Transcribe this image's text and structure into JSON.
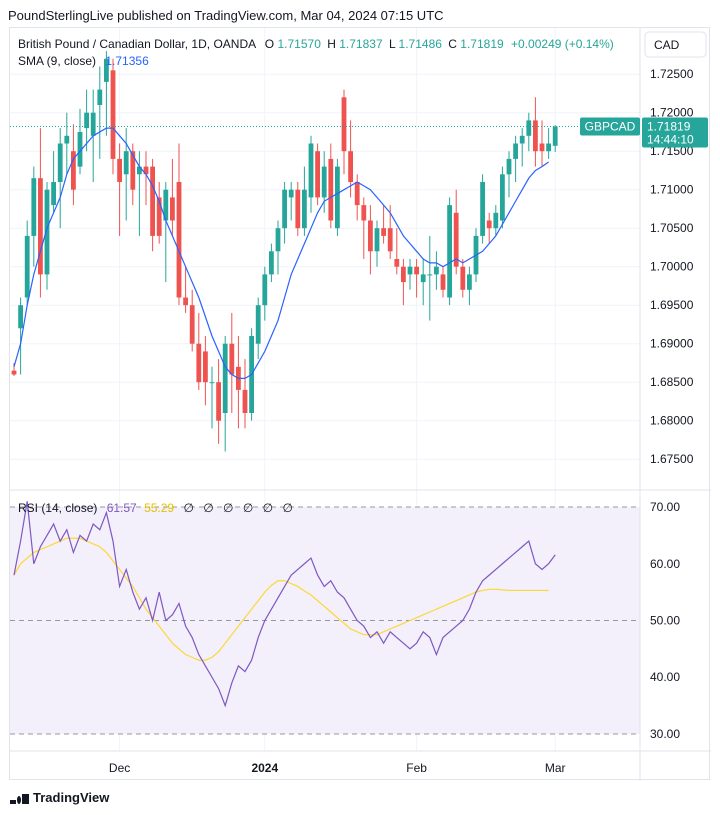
{
  "header": {
    "publisher_line": "PoundSterlingLive published on TradingView.com, Mar 04, 2024 07:15 UTC"
  },
  "currency_button": "CAD",
  "legend": {
    "symbol": "British Pound / Canadian Dollar, 1D, OANDA",
    "open_label": "O",
    "open": "1.71570",
    "high_label": "H",
    "high": "1.71837",
    "low_label": "L",
    "low": "1.71486",
    "close_label": "C",
    "close": "1.71819",
    "change": "+0.00249 (+0.14%)",
    "sma_label": "SMA (9, close)",
    "sma_value": "1.71356",
    "rsi_label": "RSI (14, close)",
    "rsi_value": "61.57",
    "rsi_ma_value": "55.29",
    "na_marks": [
      "∅",
      "∅",
      "∅",
      "∅",
      "∅",
      "∅"
    ]
  },
  "price_tag": {
    "symbol": "GBPCAD",
    "price": "1.71819",
    "countdown": "14:44:10"
  },
  "colors": {
    "up": "#26a69a",
    "down": "#ef5350",
    "sma": "#2962ff",
    "rsi": "#7e57c2",
    "rsi_ma": "#fdd835",
    "rsi_band": "#f3effb",
    "grid": "#f0f3fa",
    "tag": "#26a69a"
  },
  "chart_data": [
    {
      "type": "candlestick",
      "title": "British Pound / Canadian Dollar, 1D, OANDA",
      "price_ticks": [
        "1.72500",
        "1.72000",
        "1.71500",
        "1.71000",
        "1.70500",
        "1.70000",
        "1.69500",
        "1.69000",
        "1.68500",
        "1.68000",
        "1.67500"
      ],
      "time_ticks": [
        {
          "label": "Dec",
          "idx": 16
        },
        {
          "label": "2024",
          "idx": 38
        },
        {
          "label": "Feb",
          "idx": 61
        },
        {
          "label": "Mar",
          "idx": 82
        }
      ],
      "ylim": [
        1.671,
        1.731
      ],
      "candles": [
        {
          "o": 1.6865,
          "h": 1.6875,
          "l": 1.6858,
          "c": 1.686
        },
        {
          "o": 1.692,
          "h": 1.696,
          "l": 1.686,
          "c": 1.695
        },
        {
          "o": 1.696,
          "h": 1.706,
          "l": 1.695,
          "c": 1.704
        },
        {
          "o": 1.704,
          "h": 1.713,
          "l": 1.7,
          "c": 1.7115
        },
        {
          "o": 1.7115,
          "h": 1.718,
          "l": 1.696,
          "c": 1.699
        },
        {
          "o": 1.699,
          "h": 1.711,
          "l": 1.697,
          "c": 1.71
        },
        {
          "o": 1.708,
          "h": 1.715,
          "l": 1.707,
          "c": 1.711
        },
        {
          "o": 1.711,
          "h": 1.718,
          "l": 1.705,
          "c": 1.716
        },
        {
          "o": 1.716,
          "h": 1.72,
          "l": 1.712,
          "c": 1.717
        },
        {
          "o": 1.715,
          "h": 1.7185,
          "l": 1.708,
          "c": 1.71
        },
        {
          "o": 1.713,
          "h": 1.7205,
          "l": 1.712,
          "c": 1.7175
        },
        {
          "o": 1.718,
          "h": 1.723,
          "l": 1.715,
          "c": 1.72
        },
        {
          "o": 1.717,
          "h": 1.723,
          "l": 1.711,
          "c": 1.72
        },
        {
          "o": 1.721,
          "h": 1.726,
          "l": 1.714,
          "c": 1.723
        },
        {
          "o": 1.724,
          "h": 1.728,
          "l": 1.717,
          "c": 1.727
        },
        {
          "o": 1.7255,
          "h": 1.727,
          "l": 1.712,
          "c": 1.714
        },
        {
          "o": 1.714,
          "h": 1.716,
          "l": 1.704,
          "c": 1.711
        },
        {
          "o": 1.712,
          "h": 1.718,
          "l": 1.706,
          "c": 1.715
        },
        {
          "o": 1.715,
          "h": 1.716,
          "l": 1.708,
          "c": 1.71
        },
        {
          "o": 1.712,
          "h": 1.715,
          "l": 1.704,
          "c": 1.713
        },
        {
          "o": 1.713,
          "h": 1.715,
          "l": 1.708,
          "c": 1.712
        },
        {
          "o": 1.713,
          "h": 1.714,
          "l": 1.702,
          "c": 1.704
        },
        {
          "o": 1.709,
          "h": 1.711,
          "l": 1.703,
          "c": 1.704
        },
        {
          "o": 1.706,
          "h": 1.711,
          "l": 1.698,
          "c": 1.71
        },
        {
          "o": 1.709,
          "h": 1.714,
          "l": 1.704,
          "c": 1.706
        },
        {
          "o": 1.711,
          "h": 1.716,
          "l": 1.695,
          "c": 1.696
        },
        {
          "o": 1.696,
          "h": 1.7,
          "l": 1.694,
          "c": 1.695
        },
        {
          "o": 1.695,
          "h": 1.697,
          "l": 1.689,
          "c": 1.69
        },
        {
          "o": 1.69,
          "h": 1.694,
          "l": 1.684,
          "c": 1.685
        },
        {
          "o": 1.689,
          "h": 1.691,
          "l": 1.682,
          "c": 1.685
        },
        {
          "o": 1.685,
          "h": 1.687,
          "l": 1.679,
          "c": 1.685
        },
        {
          "o": 1.685,
          "h": 1.688,
          "l": 1.677,
          "c": 1.68
        },
        {
          "o": 1.681,
          "h": 1.691,
          "l": 1.676,
          "c": 1.69
        },
        {
          "o": 1.69,
          "h": 1.694,
          "l": 1.681,
          "c": 1.686
        },
        {
          "o": 1.687,
          "h": 1.691,
          "l": 1.679,
          "c": 1.684
        },
        {
          "o": 1.684,
          "h": 1.688,
          "l": 1.679,
          "c": 1.681
        },
        {
          "o": 1.681,
          "h": 1.692,
          "l": 1.68,
          "c": 1.691
        },
        {
          "o": 1.69,
          "h": 1.696,
          "l": 1.688,
          "c": 1.695
        },
        {
          "o": 1.695,
          "h": 1.7,
          "l": 1.693,
          "c": 1.699
        },
        {
          "o": 1.699,
          "h": 1.703,
          "l": 1.698,
          "c": 1.702
        },
        {
          "o": 1.702,
          "h": 1.706,
          "l": 1.699,
          "c": 1.705
        },
        {
          "o": 1.705,
          "h": 1.711,
          "l": 1.703,
          "c": 1.71
        },
        {
          "o": 1.709,
          "h": 1.711,
          "l": 1.706,
          "c": 1.71
        },
        {
          "o": 1.71,
          "h": 1.711,
          "l": 1.704,
          "c": 1.705
        },
        {
          "o": 1.705,
          "h": 1.713,
          "l": 1.704,
          "c": 1.71
        },
        {
          "o": 1.709,
          "h": 1.717,
          "l": 1.707,
          "c": 1.716
        },
        {
          "o": 1.715,
          "h": 1.716,
          "l": 1.708,
          "c": 1.709
        },
        {
          "o": 1.709,
          "h": 1.715,
          "l": 1.707,
          "c": 1.713
        },
        {
          "o": 1.714,
          "h": 1.716,
          "l": 1.705,
          "c": 1.706
        },
        {
          "o": 1.705,
          "h": 1.714,
          "l": 1.704,
          "c": 1.713
        },
        {
          "o": 1.722,
          "h": 1.723,
          "l": 1.712,
          "c": 1.715
        },
        {
          "o": 1.715,
          "h": 1.719,
          "l": 1.709,
          "c": 1.711
        },
        {
          "o": 1.711,
          "h": 1.712,
          "l": 1.706,
          "c": 1.708
        },
        {
          "o": 1.708,
          "h": 1.709,
          "l": 1.701,
          "c": 1.706
        },
        {
          "o": 1.706,
          "h": 1.708,
          "l": 1.699,
          "c": 1.702
        },
        {
          "o": 1.702,
          "h": 1.706,
          "l": 1.7,
          "c": 1.705
        },
        {
          "o": 1.705,
          "h": 1.708,
          "l": 1.703,
          "c": 1.704
        },
        {
          "o": 1.705,
          "h": 1.708,
          "l": 1.701,
          "c": 1.702
        },
        {
          "o": 1.701,
          "h": 1.705,
          "l": 1.699,
          "c": 1.7
        },
        {
          "o": 1.7,
          "h": 1.701,
          "l": 1.695,
          "c": 1.698
        },
        {
          "o": 1.699,
          "h": 1.701,
          "l": 1.697,
          "c": 1.7
        },
        {
          "o": 1.7,
          "h": 1.701,
          "l": 1.696,
          "c": 1.699
        },
        {
          "o": 1.698,
          "h": 1.701,
          "l": 1.695,
          "c": 1.699
        },
        {
          "o": 1.699,
          "h": 1.704,
          "l": 1.693,
          "c": 1.699
        },
        {
          "o": 1.699,
          "h": 1.702,
          "l": 1.697,
          "c": 1.7
        },
        {
          "o": 1.699,
          "h": 1.7,
          "l": 1.696,
          "c": 1.697
        },
        {
          "o": 1.696,
          "h": 1.709,
          "l": 1.695,
          "c": 1.708
        },
        {
          "o": 1.707,
          "h": 1.71,
          "l": 1.699,
          "c": 1.7
        },
        {
          "o": 1.7,
          "h": 1.701,
          "l": 1.696,
          "c": 1.697
        },
        {
          "o": 1.697,
          "h": 1.7,
          "l": 1.695,
          "c": 1.699
        },
        {
          "o": 1.699,
          "h": 1.705,
          "l": 1.698,
          "c": 1.704
        },
        {
          "o": 1.704,
          "h": 1.712,
          "l": 1.703,
          "c": 1.711
        },
        {
          "o": 1.706,
          "h": 1.707,
          "l": 1.703,
          "c": 1.705
        },
        {
          "o": 1.705,
          "h": 1.708,
          "l": 1.704,
          "c": 1.707
        },
        {
          "o": 1.706,
          "h": 1.713,
          "l": 1.705,
          "c": 1.712
        },
        {
          "o": 1.712,
          "h": 1.715,
          "l": 1.709,
          "c": 1.714
        },
        {
          "o": 1.714,
          "h": 1.717,
          "l": 1.711,
          "c": 1.716
        },
        {
          "o": 1.716,
          "h": 1.718,
          "l": 1.713,
          "c": 1.717
        },
        {
          "o": 1.717,
          "h": 1.72,
          "l": 1.715,
          "c": 1.719
        },
        {
          "o": 1.719,
          "h": 1.722,
          "l": 1.713,
          "c": 1.715
        },
        {
          "o": 1.716,
          "h": 1.719,
          "l": 1.713,
          "c": 1.715
        },
        {
          "o": 1.715,
          "h": 1.718,
          "l": 1.714,
          "c": 1.716
        },
        {
          "o": 1.7157,
          "h": 1.7184,
          "l": 1.7149,
          "c": 1.7182
        }
      ],
      "sma": [
        1.687,
        1.69,
        1.695,
        1.699,
        1.702,
        1.705,
        1.707,
        1.709,
        1.712,
        1.714,
        1.715,
        1.716,
        1.717,
        1.7175,
        1.718,
        1.718,
        1.717,
        1.716,
        1.7145,
        1.713,
        1.712,
        1.7105,
        1.7085,
        1.706,
        1.704,
        1.702,
        1.7,
        1.698,
        1.696,
        1.6935,
        1.691,
        1.689,
        1.687,
        1.686,
        1.6855,
        1.6855,
        1.686,
        1.6875,
        1.689,
        1.691,
        1.693,
        1.696,
        1.699,
        1.701,
        1.703,
        1.705,
        1.707,
        1.7085,
        1.709,
        1.7095,
        1.71,
        1.7105,
        1.711,
        1.7105,
        1.71,
        1.709,
        1.708,
        1.707,
        1.7055,
        1.704,
        1.703,
        1.702,
        1.701,
        1.7005,
        1.7005,
        1.7,
        1.7005,
        1.701,
        1.7005,
        1.701,
        1.7015,
        1.702,
        1.703,
        1.704,
        1.7055,
        1.707,
        1.7085,
        1.71,
        1.7115,
        1.7125,
        1.713,
        1.7136
      ],
      "rsi_ticks": [
        "70.00",
        "60.00",
        "50.00",
        "40.00",
        "30.00"
      ],
      "rsi_ylim": [
        27,
        73
      ],
      "rsi_bands": {
        "upper": 70,
        "middle": 50,
        "lower": 30
      },
      "rsi": [
        58,
        64,
        71,
        60,
        63,
        65,
        67,
        64,
        66,
        62,
        65,
        64,
        67,
        66,
        69,
        64,
        56,
        59,
        55,
        52,
        54,
        50,
        55,
        50,
        51,
        53,
        49,
        47,
        44,
        42,
        40,
        38,
        35,
        39,
        42,
        41,
        43,
        47,
        50,
        52,
        54,
        56,
        58,
        59,
        60,
        61,
        58,
        56,
        57,
        55,
        54,
        52,
        50,
        49,
        47,
        48,
        46,
        48,
        47,
        46,
        45,
        46,
        48,
        47,
        44,
        47,
        48,
        49,
        50,
        52,
        55,
        57,
        58,
        59,
        60,
        61,
        62,
        63,
        64,
        60,
        59,
        60,
        61.57
      ],
      "rsi_ma": [
        58,
        60,
        61,
        62,
        62.5,
        63,
        63.5,
        64,
        64.5,
        64.5,
        64.5,
        64,
        63.5,
        63,
        62,
        60.5,
        59,
        57.5,
        56,
        54,
        52,
        50.5,
        49,
        47.5,
        46,
        45,
        44,
        43.5,
        43,
        43,
        43.5,
        44.5,
        46,
        47.5,
        49,
        50.5,
        52,
        53.5,
        55,
        56.2,
        57,
        57,
        56.5,
        56,
        55.2,
        54.5,
        53.5,
        52.5,
        51.5,
        50.5,
        49.5,
        48.5,
        48,
        47.5,
        47.5,
        47.5,
        48,
        48.5,
        49,
        49.5,
        50,
        50.5,
        51,
        51.5,
        52,
        52.5,
        53,
        53.5,
        54,
        54.5,
        55,
        55.3,
        55.5,
        55.5,
        55.4,
        55.3,
        55.3,
        55.3,
        55.3,
        55.3,
        55.3,
        55.29
      ]
    }
  ],
  "footer": {
    "brand": "TradingView"
  }
}
